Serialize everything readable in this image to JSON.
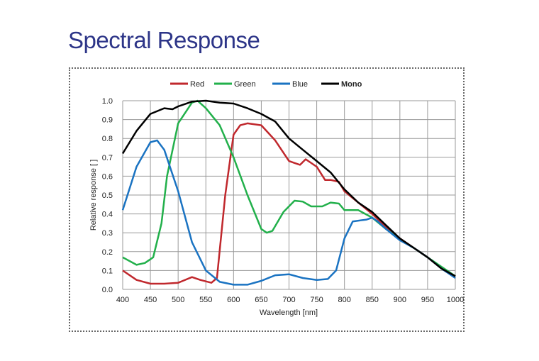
{
  "page_title": "Spectral Response",
  "chart_data": {
    "type": "line",
    "title": "",
    "xlabel": "Wavelength [nm]",
    "ylabel": "Relative response [ ]",
    "xlim": [
      400,
      1000
    ],
    "ylim": [
      0,
      1.0
    ],
    "xticks": [
      "400",
      "450",
      "500",
      "550",
      "600",
      "650",
      "700",
      "750",
      "800",
      "850",
      "900",
      "950",
      "1000"
    ],
    "yticks": [
      "0.0",
      "0.1",
      "0.2",
      "0.3",
      "0.4",
      "0.5",
      "0.6",
      "0.7",
      "0.8",
      "0.9",
      "1.0"
    ],
    "grid": true,
    "legend_position": "top",
    "series": [
      {
        "name": "Red",
        "color": "#c0282d",
        "points": [
          [
            400,
            0.1
          ],
          [
            425,
            0.05
          ],
          [
            450,
            0.03
          ],
          [
            475,
            0.03
          ],
          [
            500,
            0.035
          ],
          [
            525,
            0.065
          ],
          [
            540,
            0.05
          ],
          [
            560,
            0.035
          ],
          [
            570,
            0.06
          ],
          [
            585,
            0.5
          ],
          [
            600,
            0.82
          ],
          [
            612,
            0.87
          ],
          [
            625,
            0.88
          ],
          [
            650,
            0.87
          ],
          [
            675,
            0.79
          ],
          [
            700,
            0.68
          ],
          [
            710,
            0.67
          ],
          [
            720,
            0.66
          ],
          [
            730,
            0.69
          ],
          [
            750,
            0.65
          ],
          [
            765,
            0.58
          ],
          [
            775,
            0.58
          ],
          [
            790,
            0.57
          ],
          [
            800,
            0.52
          ],
          [
            825,
            0.46
          ],
          [
            850,
            0.4
          ],
          [
            875,
            0.33
          ],
          [
            900,
            0.27
          ],
          [
            925,
            0.22
          ],
          [
            950,
            0.17
          ],
          [
            975,
            0.11
          ],
          [
            1000,
            0.07
          ]
        ]
      },
      {
        "name": "Green",
        "color": "#22b04b",
        "points": [
          [
            400,
            0.17
          ],
          [
            425,
            0.13
          ],
          [
            440,
            0.14
          ],
          [
            455,
            0.17
          ],
          [
            470,
            0.35
          ],
          [
            480,
            0.6
          ],
          [
            500,
            0.88
          ],
          [
            525,
            0.99
          ],
          [
            535,
            1.0
          ],
          [
            550,
            0.96
          ],
          [
            575,
            0.87
          ],
          [
            600,
            0.7
          ],
          [
            625,
            0.5
          ],
          [
            650,
            0.32
          ],
          [
            660,
            0.3
          ],
          [
            670,
            0.31
          ],
          [
            690,
            0.41
          ],
          [
            710,
            0.47
          ],
          [
            725,
            0.465
          ],
          [
            740,
            0.44
          ],
          [
            760,
            0.44
          ],
          [
            775,
            0.46
          ],
          [
            790,
            0.455
          ],
          [
            800,
            0.42
          ],
          [
            825,
            0.42
          ],
          [
            850,
            0.38
          ],
          [
            875,
            0.32
          ],
          [
            900,
            0.265
          ],
          [
            925,
            0.22
          ],
          [
            950,
            0.17
          ],
          [
            975,
            0.12
          ],
          [
            1000,
            0.07
          ]
        ]
      },
      {
        "name": "Blue",
        "color": "#1a73c2",
        "points": [
          [
            400,
            0.42
          ],
          [
            425,
            0.65
          ],
          [
            450,
            0.78
          ],
          [
            462,
            0.79
          ],
          [
            475,
            0.74
          ],
          [
            500,
            0.52
          ],
          [
            525,
            0.25
          ],
          [
            550,
            0.1
          ],
          [
            575,
            0.04
          ],
          [
            600,
            0.025
          ],
          [
            625,
            0.025
          ],
          [
            650,
            0.045
          ],
          [
            675,
            0.075
          ],
          [
            700,
            0.08
          ],
          [
            725,
            0.06
          ],
          [
            750,
            0.05
          ],
          [
            770,
            0.055
          ],
          [
            785,
            0.1
          ],
          [
            800,
            0.27
          ],
          [
            815,
            0.36
          ],
          [
            840,
            0.37
          ],
          [
            850,
            0.38
          ],
          [
            860,
            0.36
          ],
          [
            875,
            0.32
          ],
          [
            900,
            0.26
          ],
          [
            925,
            0.22
          ],
          [
            950,
            0.17
          ],
          [
            975,
            0.11
          ],
          [
            1000,
            0.06
          ]
        ]
      },
      {
        "name": "Mono",
        "color": "#000000",
        "points": [
          [
            400,
            0.72
          ],
          [
            425,
            0.84
          ],
          [
            450,
            0.93
          ],
          [
            475,
            0.96
          ],
          [
            490,
            0.955
          ],
          [
            500,
            0.97
          ],
          [
            525,
            0.995
          ],
          [
            550,
            1.0
          ],
          [
            575,
            0.99
          ],
          [
            600,
            0.985
          ],
          [
            625,
            0.96
          ],
          [
            650,
            0.93
          ],
          [
            675,
            0.89
          ],
          [
            700,
            0.8
          ],
          [
            725,
            0.74
          ],
          [
            750,
            0.68
          ],
          [
            775,
            0.62
          ],
          [
            800,
            0.53
          ],
          [
            825,
            0.46
          ],
          [
            850,
            0.41
          ],
          [
            875,
            0.34
          ],
          [
            900,
            0.27
          ],
          [
            925,
            0.22
          ],
          [
            950,
            0.17
          ],
          [
            975,
            0.11
          ],
          [
            1000,
            0.07
          ]
        ]
      }
    ]
  }
}
